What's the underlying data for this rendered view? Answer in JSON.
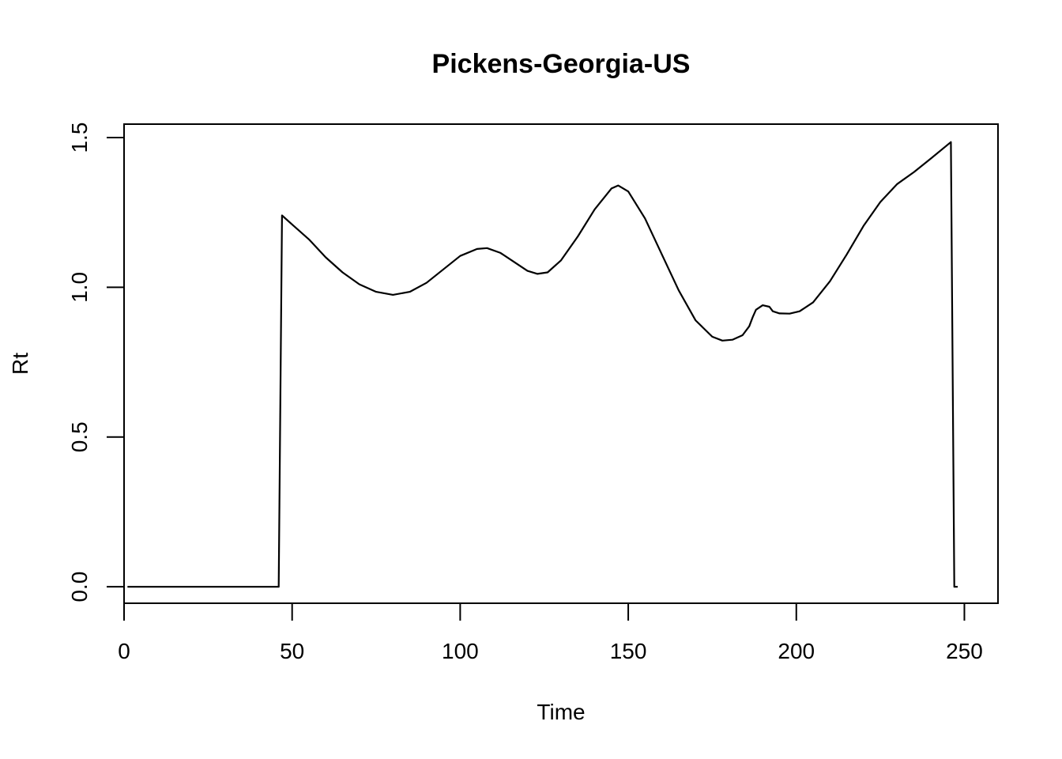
{
  "chart_data": {
    "type": "line",
    "title": "Pickens-Georgia-US",
    "xlabel": "Time",
    "ylabel": "Rt",
    "xlim": [
      0,
      260
    ],
    "ylim": [
      -0.055,
      1.545
    ],
    "x_ticks": [
      0,
      50,
      100,
      150,
      200,
      250
    ],
    "y_ticks": [
      0.0,
      0.5,
      1.0,
      1.5
    ],
    "x_tick_labels": [
      "0",
      "50",
      "100",
      "150",
      "200",
      "250"
    ],
    "y_tick_labels": [
      "0.0",
      "0.5",
      "1.0",
      "1.5"
    ],
    "grid": false,
    "series": [
      {
        "color": "#000000",
        "x": [
          1,
          46,
          47,
          50,
          55,
          60,
          65,
          70,
          75,
          80,
          85,
          90,
          95,
          100,
          105,
          108,
          112,
          116,
          120,
          123,
          126,
          130,
          135,
          140,
          145,
          147,
          150,
          155,
          160,
          165,
          170,
          175,
          178,
          181,
          184,
          186,
          187,
          188,
          190,
          192,
          193,
          195,
          198,
          201,
          205,
          210,
          215,
          220,
          225,
          230,
          235,
          240,
          246,
          247,
          248
        ],
        "values": [
          0.0,
          0.0,
          1.24,
          1.21,
          1.16,
          1.1,
          1.05,
          1.01,
          0.985,
          0.975,
          0.985,
          1.015,
          1.06,
          1.105,
          1.128,
          1.131,
          1.115,
          1.085,
          1.055,
          1.045,
          1.05,
          1.09,
          1.17,
          1.26,
          1.33,
          1.34,
          1.32,
          1.23,
          1.11,
          0.99,
          0.89,
          0.835,
          0.822,
          0.825,
          0.84,
          0.87,
          0.9,
          0.925,
          0.94,
          0.935,
          0.92,
          0.913,
          0.912,
          0.92,
          0.95,
          1.02,
          1.11,
          1.205,
          1.285,
          1.345,
          1.385,
          1.43,
          1.485,
          0.0,
          0.0
        ]
      }
    ]
  }
}
